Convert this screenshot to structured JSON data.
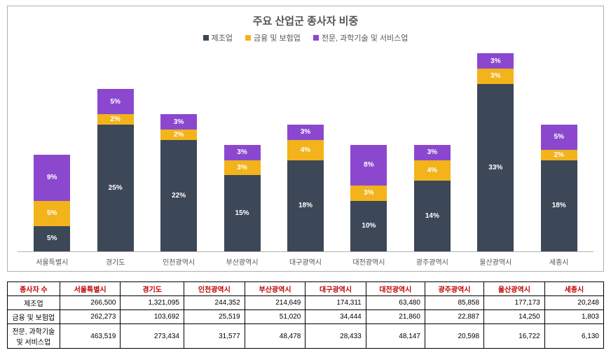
{
  "chart": {
    "title": "주요 산업군 종사자 비중",
    "type": "stacked-bar",
    "background_color": "#ffffff",
    "border_color": "#b0b0b0",
    "max_pct": 40,
    "series": [
      {
        "key": "s1",
        "label": "제조업",
        "color": "#3c4757"
      },
      {
        "key": "s2",
        "label": "금융 및 보험업",
        "color": "#f2b31b"
      },
      {
        "key": "s3",
        "label": "전문, 과학기술 및 서비스업",
        "color": "#8b48cf"
      }
    ],
    "categories": [
      {
        "label": "서울특별시",
        "s1": 5,
        "s2": 5,
        "s3": 9
      },
      {
        "label": "경기도",
        "s1": 25,
        "s2": 2,
        "s3": 5
      },
      {
        "label": "인천광역시",
        "s1": 22,
        "s2": 2,
        "s3": 3
      },
      {
        "label": "부산광역시",
        "s1": 15,
        "s2": 3,
        "s3": 3
      },
      {
        "label": "대구광역시",
        "s1": 18,
        "s2": 4,
        "s3": 3
      },
      {
        "label": "대전광역시",
        "s1": 10,
        "s2": 3,
        "s3": 8
      },
      {
        "label": "광주광역시",
        "s1": 14,
        "s2": 4,
        "s3": 3
      },
      {
        "label": "울산광역시",
        "s1": 33,
        "s2": 3,
        "s3": 3
      },
      {
        "label": "세종시",
        "s1": 18,
        "s2": 2,
        "s3": 5
      }
    ]
  },
  "table": {
    "header_label": "종사자 수",
    "header_color": "#c00000",
    "columns": [
      "서울특별시",
      "경기도",
      "인천광역시",
      "부산광역시",
      "대구광역시",
      "대전광역시",
      "광주광역시",
      "울산광역시",
      "세종시"
    ],
    "rows": [
      {
        "label": "제조업",
        "values": [
          "266,500",
          "1,321,095",
          "244,352",
          "214,649",
          "174,311",
          "63,480",
          "85,858",
          "177,173",
          "20,248"
        ]
      },
      {
        "label": "금융 및 보험업",
        "values": [
          "262,273",
          "103,692",
          "25,519",
          "51,020",
          "34,444",
          "21,860",
          "22,887",
          "14,250",
          "1,803"
        ]
      },
      {
        "label": "전문, 과학기술 및 서비스업",
        "values": [
          "463,519",
          "273,434",
          "31,577",
          "48,478",
          "28,433",
          "48,147",
          "20,598",
          "16,722",
          "6,130"
        ]
      }
    ]
  }
}
